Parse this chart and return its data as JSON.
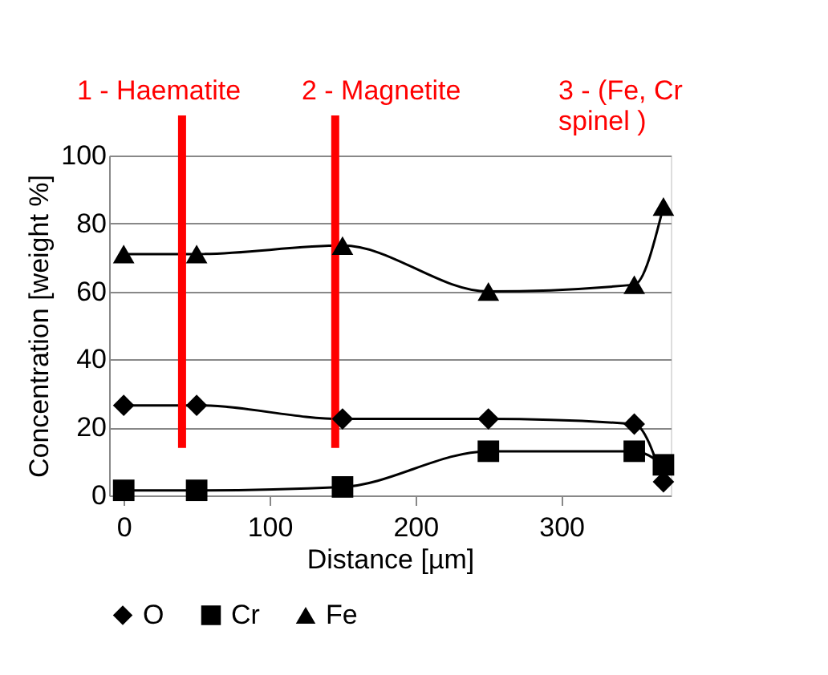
{
  "chart_data": {
    "type": "line",
    "xlabel": "Distance [µm]",
    "ylabel": "Concentration [weight  %]",
    "x": [
      0,
      50,
      150,
      250,
      350,
      370
    ],
    "series": [
      {
        "name": "O",
        "color": "#000000",
        "marker": "diamond",
        "values": [
          26.5,
          26.5,
          22.5,
          22.5,
          21,
          4
        ]
      },
      {
        "name": "Cr",
        "color": "#000000",
        "marker": "square",
        "values": [
          1.5,
          1.5,
          2.5,
          13,
          13,
          9
        ]
      },
      {
        "name": "Fe",
        "color": "#000000",
        "marker": "triangle",
        "values": [
          71,
          71,
          73.5,
          60,
          62,
          85
        ]
      }
    ],
    "xlim": [
      -10,
      375
    ],
    "xticks": [
      0,
      100,
      200,
      300
    ],
    "ylim": [
      0,
      100
    ],
    "yticks": [
      0,
      20,
      40,
      60,
      80,
      100
    ],
    "grid": "y",
    "legend": "bottom",
    "line_style": "solid",
    "ref_lines": [
      {
        "axis": "x",
        "value": 40,
        "color": "#ff0000"
      },
      {
        "axis": "x",
        "value": 145,
        "color": "#ff0000"
      }
    ],
    "annotations": [
      "1 - Haematite",
      "2 - Magnetite",
      "3 - (Fe, Cr spinel )"
    ]
  }
}
